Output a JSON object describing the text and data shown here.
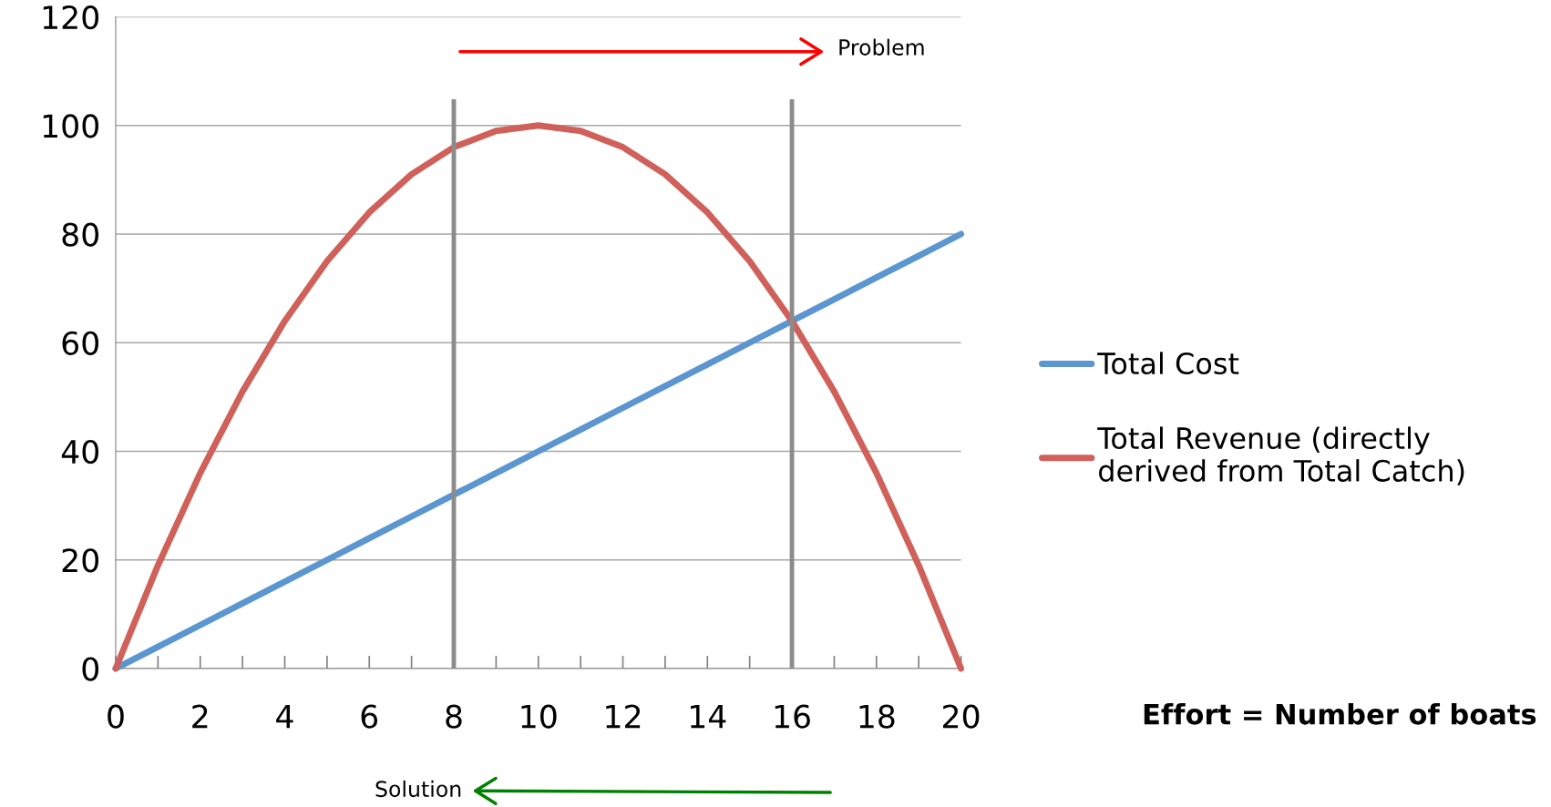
{
  "chart_data": {
    "type": "line",
    "x": [
      0,
      1,
      2,
      3,
      4,
      5,
      6,
      7,
      8,
      9,
      10,
      11,
      12,
      13,
      14,
      15,
      16,
      17,
      18,
      19,
      20
    ],
    "series": [
      {
        "name": "Total Cost",
        "color": "#5b96d0",
        "values": [
          0,
          4,
          8,
          12,
          16,
          20,
          24,
          28,
          32,
          36,
          40,
          44,
          48,
          52,
          56,
          60,
          64,
          68,
          72,
          76,
          80
        ]
      },
      {
        "name": "Total Revenue (directly derived from Total Catch)",
        "color": "#d0605a",
        "values": [
          0,
          19,
          36,
          51,
          64,
          75,
          84,
          91,
          96,
          99,
          100,
          99,
          96,
          91,
          84,
          75,
          64,
          51,
          36,
          19,
          0
        ]
      }
    ],
    "xlim": [
      0,
      20
    ],
    "ylim": [
      0,
      120
    ],
    "xticks": [
      0,
      {
        "value": 1,
        "label": null
      },
      2,
      {
        "value": 3,
        "label": null
      },
      4,
      {
        "value": 5,
        "label": null
      },
      6,
      {
        "value": 7,
        "label": null
      },
      8,
      {
        "value": 9,
        "label": null
      },
      10,
      {
        "value": 11,
        "label": null
      },
      12,
      {
        "value": 13,
        "label": null
      },
      14,
      {
        "value": 15,
        "label": null
      },
      16,
      {
        "value": 17,
        "label": null
      },
      18,
      {
        "value": 19,
        "label": null
      },
      20
    ],
    "yticks": [
      0,
      20,
      40,
      60,
      80,
      100,
      120
    ],
    "grid": "y",
    "legend": "right",
    "marker": "none",
    "line_style": "solid",
    "ref_lines": [
      {
        "axis": "x",
        "value": 8,
        "color": "#8c8c8c"
      },
      {
        "axis": "x",
        "value": 16,
        "color": "#8c8c8c"
      }
    ],
    "annotations": [
      "Problem",
      "Solution",
      "Effort = Number of boats"
    ]
  }
}
